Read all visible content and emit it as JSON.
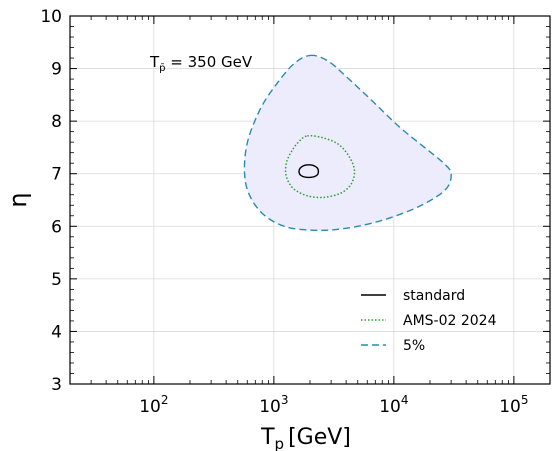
{
  "chart_data": {
    "type": "contour",
    "title": "",
    "xlabel_main": "T",
    "xlabel_sub": "p",
    "xlabel_unit": "[GeV]",
    "ylabel": "η",
    "annotation": {
      "main": "T",
      "sub": "p̄",
      "rest": " = 350 GeV"
    },
    "xscale": "log",
    "xlim": [
      20,
      200000
    ],
    "ylim": [
      3,
      10
    ],
    "grid": true,
    "x_tick_labels": [
      {
        "base": "10",
        "exp": "2",
        "value": 100
      },
      {
        "base": "10",
        "exp": "3",
        "value": 1000
      },
      {
        "base": "10",
        "exp": "4",
        "value": 10000
      },
      {
        "base": "10",
        "exp": "5",
        "value": 100000
      }
    ],
    "y_ticks": [
      3,
      4,
      5,
      6,
      7,
      8,
      9,
      10
    ],
    "legend_position": "lower-right",
    "colors": {
      "standard": "#000000",
      "ams": "#2ca02c",
      "five": "#1f77b4",
      "fill": "#ececfc",
      "five_stroke": "#2a8bb0"
    },
    "series": [
      {
        "name": "standard",
        "style": "solid",
        "points": [
          [
            1950,
            7.17
          ],
          [
            2250,
            7.13
          ],
          [
            2350,
            7.04
          ],
          [
            2250,
            6.96
          ],
          [
            1950,
            6.93
          ],
          [
            1700,
            6.96
          ],
          [
            1620,
            7.04
          ],
          [
            1700,
            7.13
          ],
          [
            1950,
            7.17
          ]
        ]
      },
      {
        "name": "AMS-02 2024",
        "style": "dotted",
        "points": [
          [
            1900,
            7.72
          ],
          [
            2600,
            7.68
          ],
          [
            3500,
            7.55
          ],
          [
            4300,
            7.3
          ],
          [
            4700,
            7.05
          ],
          [
            4400,
            6.8
          ],
          [
            3600,
            6.63
          ],
          [
            2600,
            6.55
          ],
          [
            1900,
            6.58
          ],
          [
            1450,
            6.72
          ],
          [
            1270,
            6.95
          ],
          [
            1270,
            7.2
          ],
          [
            1400,
            7.42
          ],
          [
            1600,
            7.6
          ],
          [
            1900,
            7.72
          ]
        ]
      },
      {
        "name": "5%",
        "style": "dashed",
        "filled": true,
        "points": [
          [
            2000,
            9.25
          ],
          [
            2800,
            9.15
          ],
          [
            4000,
            8.85
          ],
          [
            6500,
            8.4
          ],
          [
            11000,
            7.9
          ],
          [
            18000,
            7.5
          ],
          [
            26000,
            7.2
          ],
          [
            30000,
            7.0
          ],
          [
            27000,
            6.7
          ],
          [
            17000,
            6.4
          ],
          [
            9000,
            6.15
          ],
          [
            5000,
            6.0
          ],
          [
            3000,
            5.93
          ],
          [
            2000,
            5.93
          ],
          [
            1300,
            5.98
          ],
          [
            900,
            6.15
          ],
          [
            700,
            6.4
          ],
          [
            600,
            6.7
          ],
          [
            570,
            7.0
          ],
          [
            580,
            7.4
          ],
          [
            640,
            7.8
          ],
          [
            800,
            8.3
          ],
          [
            1050,
            8.7
          ],
          [
            1450,
            9.08
          ],
          [
            2000,
            9.25
          ]
        ]
      }
    ]
  }
}
